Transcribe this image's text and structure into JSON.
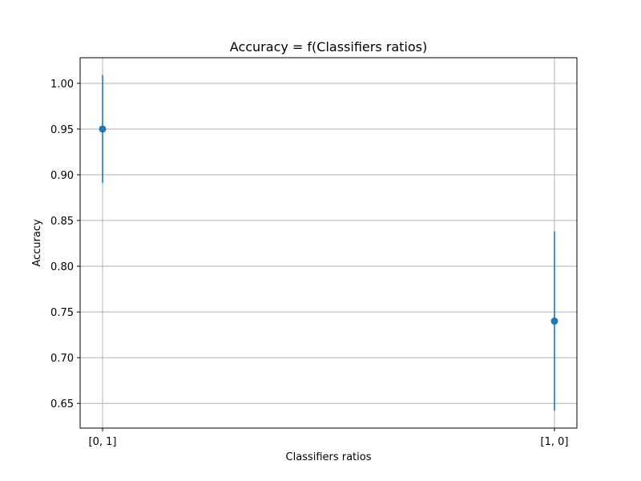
{
  "chart_data": {
    "type": "scatter",
    "title": "Accuracy = f(Classifiers ratios)",
    "xlabel": "Classifiers ratios",
    "ylabel": "Accuracy",
    "categories": [
      "[0, 1]",
      "[1, 0]"
    ],
    "series": [
      {
        "values": [
          0.95,
          0.74
        ],
        "errors": [
          0.059,
          0.098
        ],
        "color": "#1f77b4"
      }
    ],
    "ylim": [
      0.623,
      1.028
    ],
    "yticks": [
      0.65,
      0.7,
      0.75,
      0.8,
      0.85,
      0.9,
      0.95,
      1.0
    ],
    "ytick_labels": [
      "0.65",
      "0.70",
      "0.75",
      "0.80",
      "0.85",
      "0.90",
      "0.95",
      "1.00"
    ],
    "grid": true,
    "legend": "none"
  }
}
